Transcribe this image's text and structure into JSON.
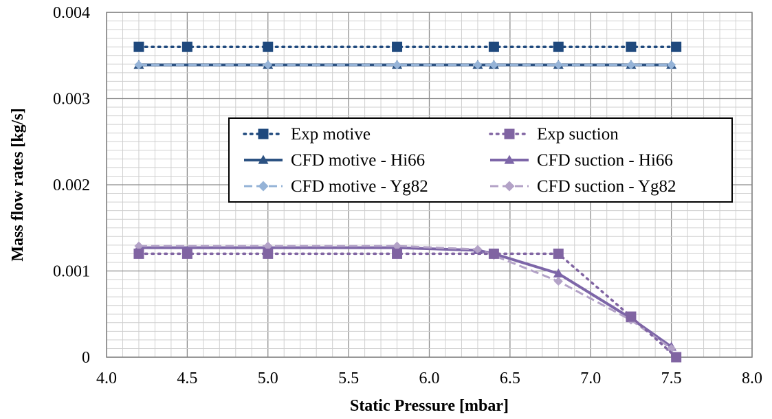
{
  "chart_data": {
    "type": "line",
    "xlabel": "Static Pressure [mbar]",
    "ylabel": "Mass flow rates  [kg/s]",
    "xlim": [
      4.0,
      8.0
    ],
    "ylim": [
      0,
      0.004
    ],
    "x_ticks": [
      "4.0",
      "4.5",
      "5.0",
      "5.5",
      "6.0",
      "6.5",
      "7.0",
      "7.5",
      "8.0"
    ],
    "y_ticks": [
      "0",
      "0.001",
      "0.002",
      "0.003",
      "0.004"
    ],
    "x_minor_step": 0.1,
    "y_minor_step": 0.0001,
    "grid": true,
    "legend_position": "center-right",
    "series": [
      {
        "name": "Exp motive",
        "color": "#1F497D",
        "style": "dotted",
        "marker": "square",
        "x": [
          4.2,
          4.5,
          5.0,
          5.8,
          6.4,
          6.8,
          7.25,
          7.53
        ],
        "y": [
          0.0036,
          0.0036,
          0.0036,
          0.0036,
          0.0036,
          0.0036,
          0.0036,
          0.0036
        ]
      },
      {
        "name": "Exp suction",
        "color": "#8064A2",
        "style": "dotted",
        "marker": "square",
        "x": [
          4.2,
          4.5,
          5.0,
          5.8,
          6.4,
          6.8,
          7.25,
          7.53
        ],
        "y": [
          0.0012,
          0.0012,
          0.0012,
          0.0012,
          0.0012,
          0.0012,
          0.00047,
          0.0
        ]
      },
      {
        "name": "CFD motive - Hi66",
        "color": "#2C5282",
        "style": "solid",
        "marker": "triangle",
        "x": [
          4.2,
          5.0,
          5.8,
          6.3,
          6.4,
          6.8,
          7.25,
          7.5
        ],
        "y": [
          0.00339,
          0.00339,
          0.00339,
          0.00339,
          0.00339,
          0.00339,
          0.00339,
          0.00339
        ]
      },
      {
        "name": "CFD suction - Hi66",
        "color": "#7D66A8",
        "style": "solid",
        "marker": "triangle",
        "x": [
          4.2,
          5.0,
          5.8,
          6.3,
          6.4,
          6.8,
          7.25,
          7.5
        ],
        "y": [
          0.00127,
          0.00127,
          0.00127,
          0.00124,
          0.0012,
          0.00097,
          0.00045,
          0.00012
        ]
      },
      {
        "name": "CFD motive - Yg82",
        "color": "#95B3D7",
        "style": "dashed",
        "marker": "diamond",
        "x": [
          4.2,
          5.0,
          5.8,
          6.3,
          6.4,
          6.8,
          7.25,
          7.5
        ],
        "y": [
          0.00339,
          0.00339,
          0.00339,
          0.00339,
          0.00339,
          0.00339,
          0.00339,
          0.00339
        ]
      },
      {
        "name": "CFD suction - Yg82",
        "color": "#B3A2C7",
        "style": "dashed",
        "marker": "diamond",
        "x": [
          4.2,
          5.0,
          5.8,
          6.3,
          6.4,
          6.8,
          7.25,
          7.5
        ],
        "y": [
          0.00129,
          0.00129,
          0.00129,
          0.00125,
          0.00118,
          0.00088,
          0.00043,
          0.0001
        ]
      }
    ],
    "legend_order": [
      0,
      1,
      2,
      3,
      4,
      5
    ]
  }
}
